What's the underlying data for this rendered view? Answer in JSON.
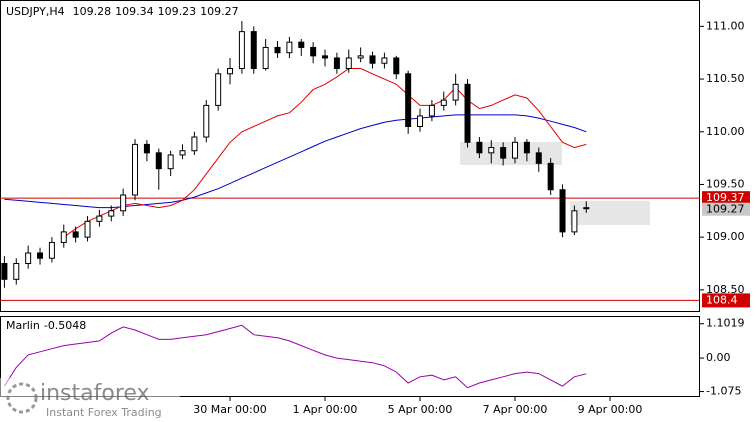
{
  "chart_data": {
    "type": "candlestick",
    "symbol": "USDJPY,H4",
    "indicator_name": "Marlin",
    "watermark": {
      "brand": "instaforex",
      "tagline": "Instant Forex Trading"
    },
    "categories": [
      null,
      null,
      null,
      null,
      null,
      null,
      null,
      null,
      null,
      null,
      null,
      null,
      null,
      null,
      null,
      null,
      null,
      null,
      null,
      "30 Mar 00:00",
      null,
      null,
      null,
      null,
      null,
      null,
      null,
      "1 Apr 00:00",
      null,
      null,
      null,
      null,
      null,
      null,
      null,
      "5 Apr 00:00",
      null,
      null,
      null,
      null,
      null,
      null,
      null,
      "7 Apr 00:00",
      null,
      null,
      null,
      null,
      null,
      null,
      null,
      "9 Apr 00:00",
      null,
      null,
      null,
      null,
      null
    ],
    "open": [
      108.75,
      108.6,
      108.75,
      108.85,
      108.8,
      108.95,
      109.05,
      109.0,
      109.15,
      109.2,
      109.25,
      109.4,
      109.88,
      109.8,
      109.65,
      109.78,
      109.82,
      109.95,
      110.25,
      110.55,
      110.6,
      110.95,
      110.6,
      110.8,
      110.75,
      110.85,
      110.8,
      110.72,
      110.7,
      110.6,
      110.7,
      110.72,
      110.65,
      110.7,
      110.55,
      110.05,
      110.15,
      110.25,
      110.3,
      110.45,
      109.9,
      109.8,
      109.85,
      109.75,
      109.9,
      109.8,
      109.7,
      109.45,
      109.05,
      109.28,
      null,
      null,
      null,
      null,
      null,
      null,
      null
    ],
    "high": [
      108.82,
      108.8,
      108.92,
      108.9,
      109.0,
      109.12,
      109.1,
      109.2,
      109.26,
      109.3,
      109.46,
      109.93,
      109.92,
      109.84,
      109.82,
      109.88,
      110.0,
      110.3,
      110.6,
      110.7,
      111.05,
      111.0,
      110.88,
      110.86,
      110.9,
      110.88,
      110.85,
      110.78,
      110.75,
      110.78,
      110.8,
      110.76,
      110.75,
      110.72,
      110.58,
      110.22,
      110.3,
      110.38,
      110.55,
      110.5,
      109.95,
      109.92,
      109.9,
      109.95,
      109.93,
      109.85,
      109.75,
      109.5,
      109.3,
      109.34,
      null,
      null,
      null,
      null,
      null,
      null,
      null
    ],
    "low": [
      108.52,
      108.55,
      108.7,
      108.74,
      108.76,
      108.9,
      108.95,
      108.96,
      109.1,
      109.15,
      109.2,
      109.35,
      109.72,
      109.45,
      109.58,
      109.74,
      109.78,
      109.9,
      110.2,
      110.45,
      110.55,
      110.55,
      110.58,
      110.7,
      110.7,
      110.72,
      110.65,
      110.62,
      110.55,
      110.56,
      110.66,
      110.6,
      110.6,
      110.5,
      109.98,
      110.0,
      110.1,
      110.2,
      110.25,
      109.85,
      109.75,
      109.7,
      109.68,
      109.7,
      109.72,
      109.62,
      109.4,
      109.0,
      109.02,
      109.23,
      null,
      null,
      null,
      null,
      null,
      null,
      null
    ],
    "close": [
      108.6,
      108.75,
      108.85,
      108.8,
      108.95,
      109.05,
      109.0,
      109.15,
      109.2,
      109.25,
      109.4,
      109.88,
      109.8,
      109.65,
      109.78,
      109.82,
      109.95,
      110.25,
      110.55,
      110.6,
      110.95,
      110.6,
      110.8,
      110.75,
      110.85,
      110.8,
      110.72,
      110.7,
      110.6,
      110.7,
      110.72,
      110.65,
      110.7,
      110.55,
      110.05,
      110.15,
      110.25,
      110.3,
      110.45,
      109.9,
      109.8,
      109.85,
      109.75,
      109.9,
      109.8,
      109.7,
      109.45,
      109.05,
      109.25,
      109.27,
      null,
      null,
      null,
      null,
      null,
      null,
      null
    ],
    "series": [
      {
        "color": "#0000c8",
        "values": [
          109.36,
          109.35,
          109.34,
          109.33,
          109.32,
          109.31,
          109.3,
          109.29,
          109.28,
          109.28,
          109.29,
          109.3,
          109.31,
          109.32,
          109.33,
          109.35,
          109.38,
          109.42,
          109.46,
          109.51,
          109.56,
          109.61,
          109.66,
          109.71,
          109.76,
          109.81,
          109.86,
          109.91,
          109.95,
          109.99,
          110.03,
          110.06,
          110.09,
          110.11,
          110.12,
          110.13,
          110.14,
          110.15,
          110.16,
          110.16,
          110.16,
          110.16,
          110.16,
          110.16,
          110.15,
          110.13,
          110.1,
          110.07,
          110.04,
          110.0,
          null,
          null,
          null,
          null,
          null,
          null,
          null
        ]
      },
      {
        "color": "#e00000",
        "values": [
          null,
          null,
          null,
          null,
          null,
          109.0,
          109.08,
          109.15,
          109.2,
          109.25,
          109.3,
          109.32,
          109.3,
          109.28,
          109.3,
          109.35,
          109.45,
          109.6,
          109.75,
          109.9,
          110.0,
          110.05,
          110.1,
          110.15,
          110.18,
          110.28,
          110.4,
          110.45,
          110.52,
          110.6,
          110.6,
          110.55,
          110.5,
          110.45,
          110.35,
          110.25,
          110.25,
          110.3,
          110.42,
          110.3,
          110.22,
          110.25,
          110.3,
          110.35,
          110.32,
          110.2,
          110.05,
          109.9,
          109.85,
          109.88,
          null,
          null,
          null,
          null,
          null,
          null,
          null
        ]
      }
    ],
    "indicator": {
      "color": "#9900aa",
      "values": [
        -0.9,
        -0.3,
        0.1,
        0.2,
        0.3,
        0.4,
        0.45,
        0.5,
        0.55,
        0.8,
        1.0,
        0.9,
        0.75,
        0.6,
        0.6,
        0.65,
        0.7,
        0.75,
        0.85,
        0.95,
        1.05,
        0.75,
        0.7,
        0.65,
        0.55,
        0.4,
        0.25,
        0.1,
        0.0,
        -0.05,
        -0.1,
        -0.15,
        -0.25,
        -0.45,
        -0.8,
        -0.6,
        -0.55,
        -0.7,
        -0.6,
        -0.95,
        -0.8,
        -0.7,
        -0.6,
        -0.5,
        -0.45,
        -0.5,
        -0.7,
        -0.9,
        -0.6,
        -0.5048,
        null,
        null,
        null,
        null,
        null,
        null,
        null
      ],
      "ylim": [
        -1.25,
        1.35
      ],
      "yticks": [
        1.1019,
        {
          "value": 0,
          "label": "0.00"
        },
        -1.075
      ]
    },
    "price_lines": [
      {
        "value": 109.37,
        "color": "#d00000"
      },
      {
        "value": 108.4,
        "color": "#d00000"
      }
    ],
    "ylim": [
      108.29,
      111.25
    ],
    "yticks": [
      {
        "value": 111,
        "label": "111.00"
      },
      {
        "value": 110.5,
        "label": "110.50"
      },
      {
        "value": 110,
        "label": "110.00"
      },
      {
        "value": 109.5,
        "label": "109.50"
      },
      {
        "value": 109,
        "label": "109.00"
      },
      {
        "value": 108.5,
        "label": "108.50"
      }
    ],
    "grid": false
  }
}
